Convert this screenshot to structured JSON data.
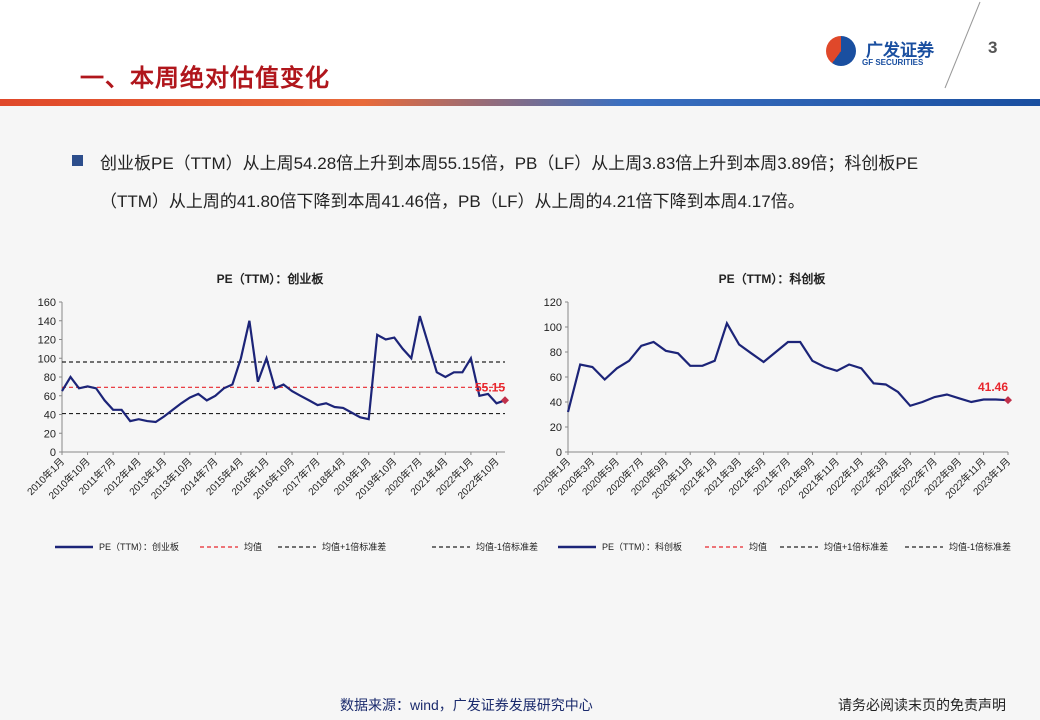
{
  "header": {
    "title": "一、本周绝对估值变化",
    "logo": "广发证券",
    "logo_en": "GF SECURITIES",
    "page": "3"
  },
  "body": {
    "text": "创业板PE（TTM）从上周54.28倍上升到本周55.15倍，PB（LF）从上周3.83倍上升到本周3.89倍；科创板PE（TTM）从上周的41.80倍下降到本周41.46倍，PB（LF）从上周的4.21倍下降到本周4.17倍。"
  },
  "footer": {
    "source": "数据来源：wind，广发证券发展研究中心",
    "disclaimer": "请务必阅读末页的免责声明"
  },
  "chart_data": [
    {
      "type": "line",
      "title": "PE（TTM）：创业板",
      "categories": [
        "2010年1月",
        null,
        null,
        "2010年10月",
        null,
        null,
        "2011年7月",
        null,
        null,
        "2012年4月",
        null,
        null,
        "2013年1月",
        null,
        null,
        "2013年10月",
        null,
        null,
        "2014年7月",
        null,
        null,
        "2015年4月",
        null,
        null,
        "2016年1月",
        null,
        null,
        "2016年10月",
        null,
        null,
        "2017年7月",
        null,
        null,
        "2018年4月",
        null,
        null,
        "2019年1月",
        null,
        null,
        "2019年10月",
        null,
        null,
        "2020年7月",
        null,
        null,
        "2021年4月",
        null,
        null,
        "2022年1月",
        null,
        null,
        "2022年10月",
        null
      ],
      "series": [
        {
          "name": "PE（TTM）：创业板",
          "color": "#1c2478",
          "values": [
            65,
            80,
            68,
            70,
            68,
            55,
            45,
            45,
            33,
            35,
            33,
            32,
            38,
            45,
            52,
            58,
            62,
            55,
            60,
            68,
            72,
            100,
            140,
            75,
            100,
            68,
            72,
            65,
            60,
            55,
            50,
            52,
            48,
            47,
            42,
            37,
            35,
            125,
            120,
            122,
            110,
            100,
            145,
            115,
            85,
            80,
            85,
            85,
            100,
            60,
            62,
            52,
            55.15
          ]
        }
      ],
      "lines": [
        {
          "name": "均值",
          "color": "#e8262d",
          "dash": "4 3",
          "value": 69
        },
        {
          "name": "均值+1倍标准差",
          "color": "#222222",
          "dash": "4 3",
          "value": 96
        },
        {
          "name": "均值-1倍标准差",
          "color": "#222222",
          "dash": "4 3",
          "value": 41
        }
      ],
      "highlight_last": true,
      "ylim": [
        0,
        160
      ],
      "yticks": [
        0,
        20,
        40,
        60,
        80,
        100,
        120,
        140,
        160
      ]
    },
    {
      "type": "line",
      "title": "PE（TTM）：科创板",
      "categories": [
        "2020年1月",
        null,
        "2020年3月",
        null,
        "2020年5月",
        null,
        "2020年7月",
        null,
        "2020年9月",
        null,
        "2020年11月",
        null,
        "2021年1月",
        null,
        "2021年3月",
        null,
        "2021年5月",
        null,
        "2021年7月",
        null,
        "2021年9月",
        null,
        "2021年11月",
        null,
        "2022年1月",
        null,
        "2022年3月",
        null,
        "2022年5月",
        null,
        "2022年7月",
        null,
        "2022年9月",
        null,
        "2022年11月",
        null,
        "2023年1月"
      ],
      "series": [
        {
          "name": "PE（TTM）：科创板",
          "color": "#1c2478",
          "values": [
            32,
            70,
            68,
            58,
            67,
            73,
            85,
            88,
            81,
            79,
            69,
            69,
            73,
            103,
            86,
            79,
            72,
            80,
            88,
            88,
            73,
            68,
            65,
            70,
            67,
            55,
            54,
            48,
            37,
            40,
            44,
            46,
            43,
            40,
            42,
            42,
            41.46
          ]
        }
      ],
      "lines": [
        {
          "name": "均值",
          "color": "#e8262d",
          "dash": "4 3"
        },
        {
          "name": "均值+1倍标准差",
          "color": "#222222",
          "dash": "4 3"
        },
        {
          "name": "均值-1倍标准差",
          "color": "#222222",
          "dash": "4 3"
        }
      ],
      "highlight_last": true,
      "ylim": [
        0,
        120
      ],
      "yticks": [
        0,
        20,
        40,
        60,
        80,
        100,
        120
      ]
    }
  ]
}
